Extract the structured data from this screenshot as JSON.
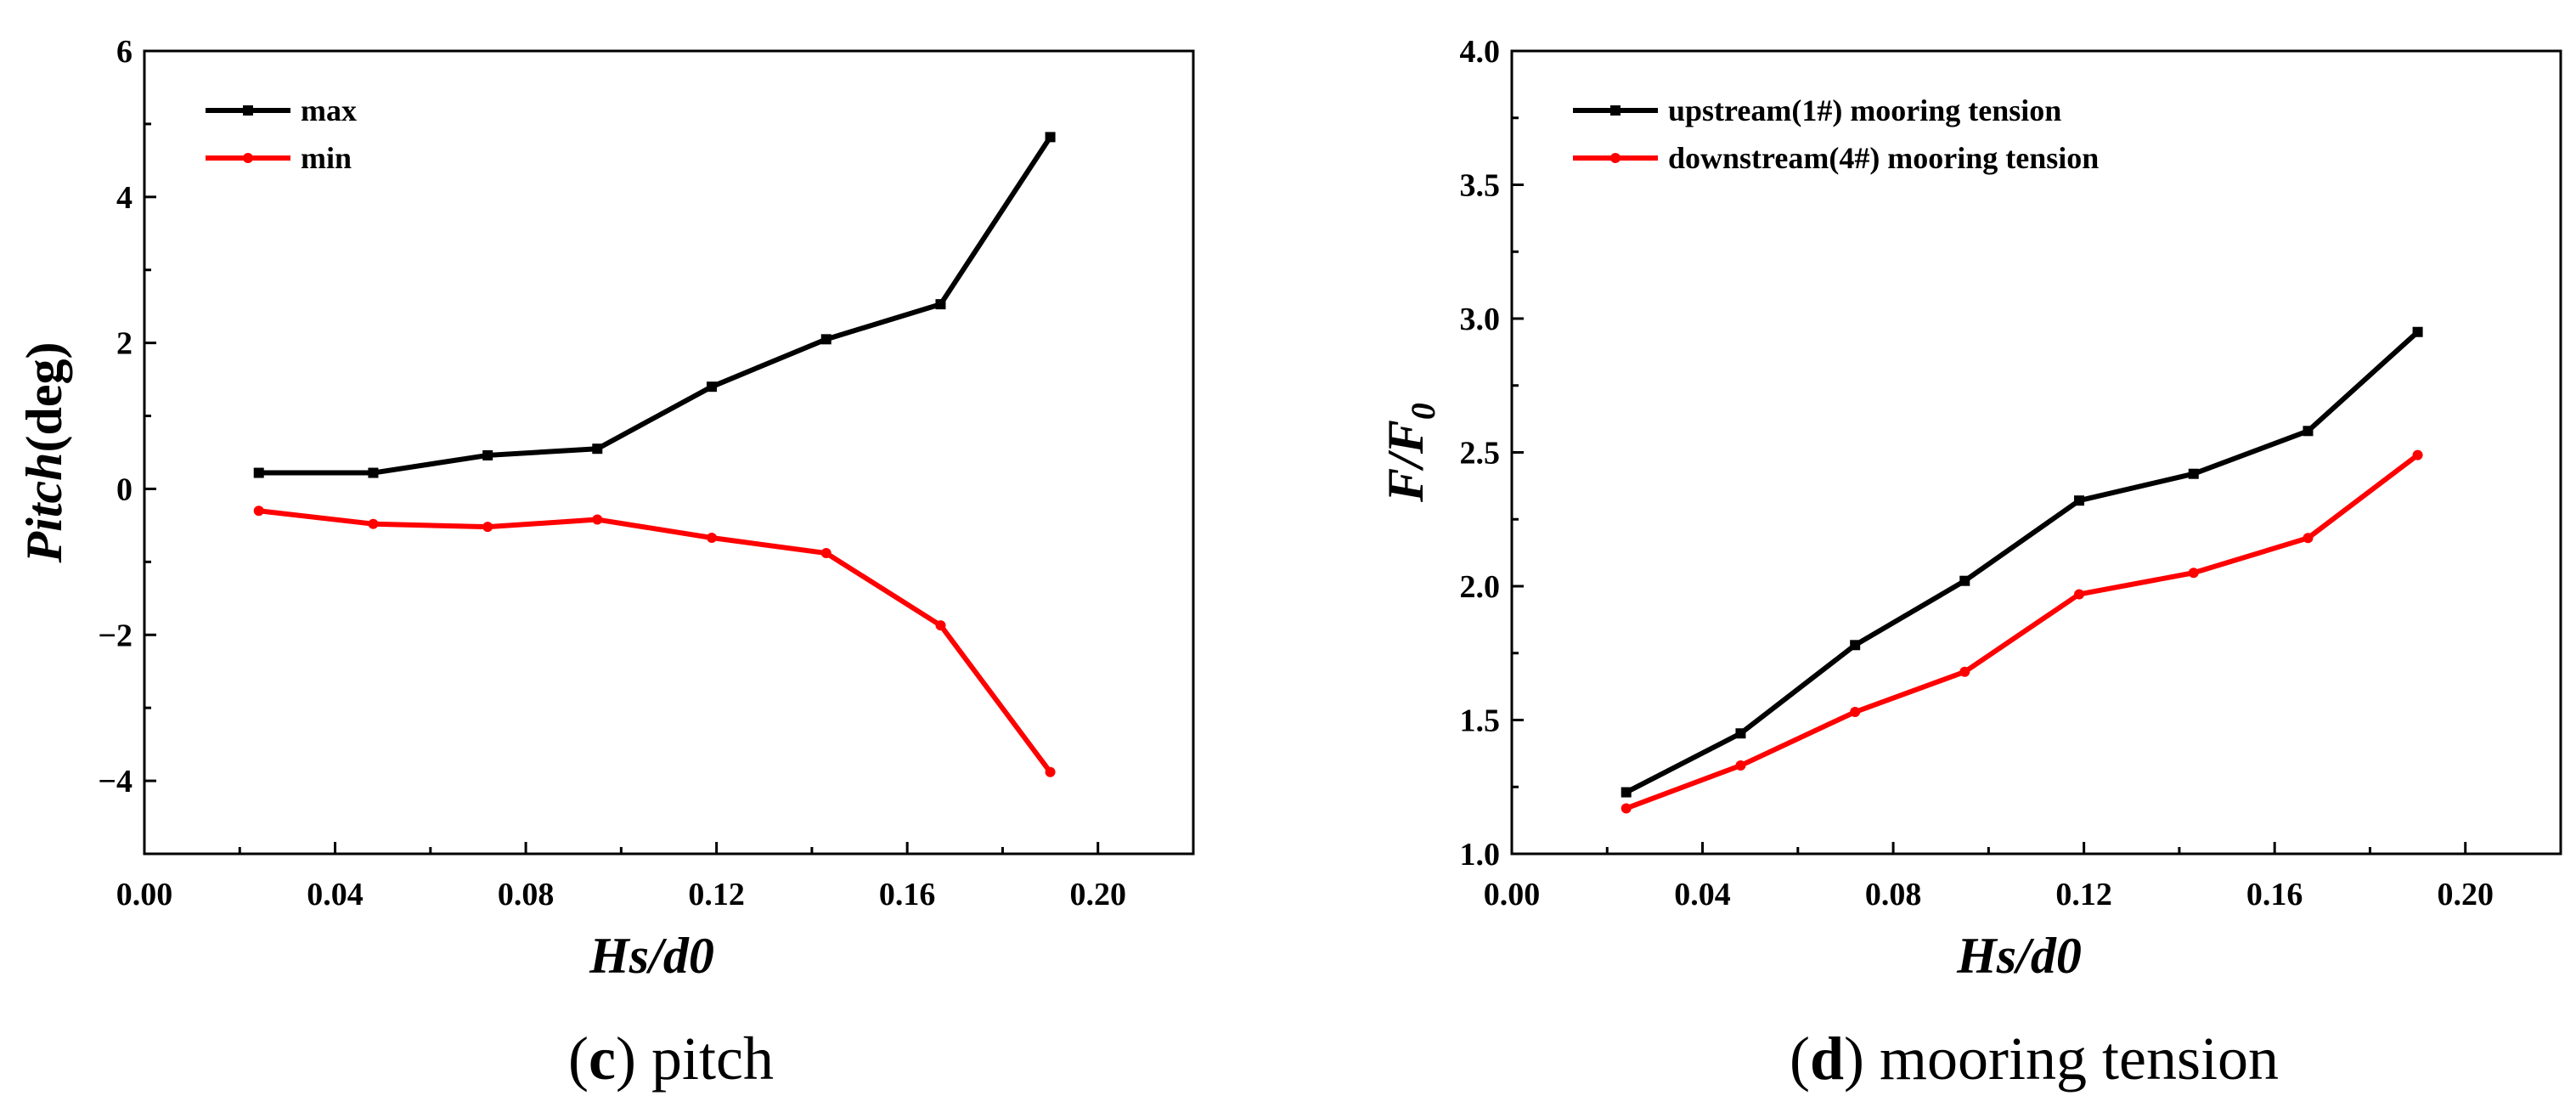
{
  "chart_data": [
    {
      "id": "pitch",
      "type": "line",
      "caption_letter": "c",
      "caption_text": "pitch",
      "xlabel": "Hs/d0",
      "ylabel_italic": "Pitch",
      "ylabel_rest": "(deg)",
      "xlim": [
        0.0,
        0.22
      ],
      "ylim": [
        -5,
        6
      ],
      "xticks": [
        0.0,
        0.04,
        0.08,
        0.12,
        0.16,
        0.2
      ],
      "xtick_labels": [
        "0.00",
        "0.04",
        "0.08",
        "0.12",
        "0.16",
        "0.20"
      ],
      "yticks": [
        -4,
        -2,
        0,
        2,
        4,
        6
      ],
      "ytick_labels": [
        "−4",
        "−2",
        "0",
        "2",
        "4",
        "6"
      ],
      "x": [
        0.024,
        0.048,
        0.072,
        0.095,
        0.119,
        0.143,
        0.167,
        0.19
      ],
      "series": [
        {
          "name": "max",
          "color": "#000000",
          "marker": "square",
          "values": [
            0.22,
            0.22,
            0.46,
            0.55,
            1.4,
            2.05,
            2.53,
            4.82
          ]
        },
        {
          "name": "min",
          "color": "#ff0000",
          "marker": "circle",
          "values": [
            -0.3,
            -0.48,
            -0.52,
            -0.42,
            -0.67,
            -0.88,
            -1.87,
            -3.88
          ]
        }
      ],
      "legend_position": "top-left"
    },
    {
      "id": "mooring",
      "type": "line",
      "caption_letter": "d",
      "caption_text": "mooring tension",
      "xlabel": "Hs/d0",
      "ylabel_main": "F/F",
      "ylabel_sub": "0",
      "xlim": [
        0.0,
        0.22
      ],
      "ylim": [
        1.0,
        4.0
      ],
      "xticks": [
        0.0,
        0.04,
        0.08,
        0.12,
        0.16,
        0.2
      ],
      "xtick_labels": [
        "0.00",
        "0.04",
        "0.08",
        "0.12",
        "0.16",
        "0.20"
      ],
      "yticks": [
        1.0,
        1.5,
        2.0,
        2.5,
        3.0,
        3.5,
        4.0
      ],
      "ytick_labels": [
        "1.0",
        "1.5",
        "2.0",
        "2.5",
        "3.0",
        "3.5",
        "4.0"
      ],
      "x": [
        0.024,
        0.048,
        0.072,
        0.095,
        0.119,
        0.143,
        0.167,
        0.19
      ],
      "series": [
        {
          "name": "upstream(1#) mooring tension",
          "color": "#000000",
          "marker": "square",
          "values": [
            1.23,
            1.45,
            1.78,
            2.02,
            2.32,
            2.42,
            2.58,
            2.95
          ]
        },
        {
          "name": "downstream(4#) mooring tension",
          "color": "#ff0000",
          "marker": "circle",
          "values": [
            1.17,
            1.33,
            1.53,
            1.68,
            1.97,
            2.05,
            2.18,
            2.49
          ]
        }
      ],
      "legend_position": "top-left"
    }
  ]
}
